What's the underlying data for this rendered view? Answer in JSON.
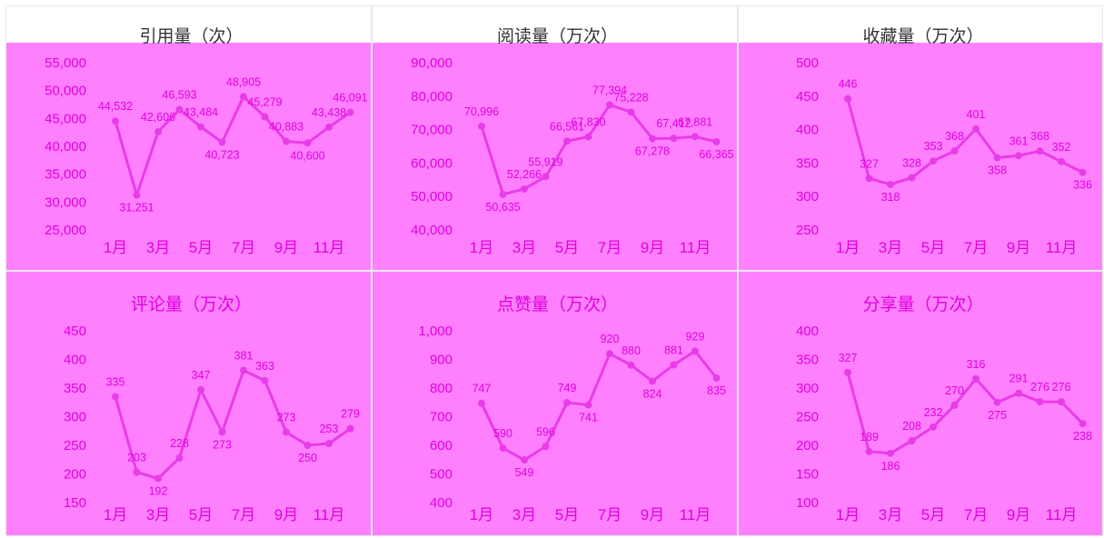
{
  "colors": {
    "background": "#ff80ff",
    "line": "#e83ce8",
    "text": "#e000e0",
    "title_top": "#333333",
    "title_bottom": "#e000e0"
  },
  "chart_data": [
    {
      "type": "line",
      "title": "引用量（次）",
      "categories": [
        "1月",
        "2月",
        "3月",
        "4月",
        "5月",
        "6月",
        "7月",
        "8月",
        "9月",
        "10月",
        "11月",
        "12月"
      ],
      "x_tick_labels": [
        "1月",
        "3月",
        "5月",
        "7月",
        "9月",
        "11月"
      ],
      "values": [
        44532,
        31251,
        42606,
        46593,
        43484,
        40723,
        48905,
        45279,
        40883,
        40600,
        43438,
        46091
      ],
      "data_labels": [
        "44,532",
        "31,251",
        "42,606",
        "46,593",
        "43,484",
        "40,723",
        "48,905",
        "45,279",
        "40,883",
        "40,600",
        "43,438",
        "46,091"
      ],
      "ylim": [
        25000,
        55000
      ],
      "y_ticks": [
        "25,000",
        "30,000",
        "35,000",
        "40,000",
        "45,000",
        "50,000",
        "55,000"
      ],
      "grid": false
    },
    {
      "type": "line",
      "title": "阅读量（万次）",
      "categories": [
        "1月",
        "2月",
        "3月",
        "4月",
        "5月",
        "6月",
        "7月",
        "8月",
        "9月",
        "10月",
        "11月",
        "12月"
      ],
      "x_tick_labels": [
        "1月",
        "3月",
        "5月",
        "7月",
        "9月",
        "11月"
      ],
      "values": [
        70996,
        50635,
        52266,
        55919,
        66561,
        67830,
        77394,
        75228,
        67278,
        67412,
        67881,
        66365
      ],
      "data_labels": [
        "70,996",
        "50,635",
        "52,266",
        "55,919",
        "66,561",
        "67,830",
        "77,394",
        "75,228",
        "67,278",
        "67,412",
        "67,881",
        "66,365"
      ],
      "ylim": [
        40000,
        90000
      ],
      "y_ticks": [
        "40,000",
        "50,000",
        "60,000",
        "70,000",
        "80,000",
        "90,000"
      ],
      "grid": false
    },
    {
      "type": "line",
      "title": "收藏量（万次）",
      "categories": [
        "1月",
        "2月",
        "3月",
        "4月",
        "5月",
        "6月",
        "7月",
        "8月",
        "9月",
        "10月",
        "11月",
        "12月"
      ],
      "x_tick_labels": [
        "1月",
        "3月",
        "5月",
        "7月",
        "9月",
        "11月"
      ],
      "values": [
        446,
        327,
        318,
        328,
        353,
        368,
        401,
        358,
        361,
        368,
        352,
        336
      ],
      "data_labels": [
        "446",
        "327",
        "318",
        "328",
        "353",
        "368",
        "401",
        "358",
        "361",
        "368",
        "352",
        "336"
      ],
      "ylim": [
        250,
        500
      ],
      "y_ticks": [
        "250",
        "300",
        "350",
        "400",
        "450",
        "500"
      ],
      "grid": false
    },
    {
      "type": "line",
      "title": "评论量（万次）",
      "categories": [
        "1月",
        "2月",
        "3月",
        "4月",
        "5月",
        "6月",
        "7月",
        "8月",
        "9月",
        "10月",
        "11月",
        "12月"
      ],
      "x_tick_labels": [
        "1月",
        "3月",
        "5月",
        "7月",
        "9月",
        "11月"
      ],
      "values": [
        335,
        203,
        192,
        228,
        347,
        273,
        381,
        363,
        273,
        250,
        253,
        279
      ],
      "data_labels": [
        "335",
        "203",
        "192",
        "228",
        "347",
        "273",
        "381",
        "363",
        "273",
        "250",
        "253",
        "279"
      ],
      "ylim": [
        150,
        450
      ],
      "y_ticks": [
        "150",
        "200",
        "250",
        "300",
        "350",
        "400",
        "450"
      ],
      "grid": false
    },
    {
      "type": "line",
      "title": "点赞量（万次）",
      "categories": [
        "1月",
        "2月",
        "3月",
        "4月",
        "5月",
        "6月",
        "7月",
        "8月",
        "9月",
        "10月",
        "11月",
        "12月"
      ],
      "x_tick_labels": [
        "1月",
        "3月",
        "5月",
        "7月",
        "9月",
        "11月"
      ],
      "values": [
        747,
        590,
        549,
        596,
        749,
        741,
        920,
        880,
        824,
        881,
        929,
        835
      ],
      "data_labels": [
        "747",
        "590",
        "549",
        "596",
        "749",
        "741",
        "920",
        "880",
        "824",
        "881",
        "929",
        "835"
      ],
      "ylim": [
        400,
        1000
      ],
      "y_ticks": [
        "400",
        "500",
        "600",
        "700",
        "800",
        "900",
        "1,000"
      ],
      "grid": false
    },
    {
      "type": "line",
      "title": "分享量（万次）",
      "categories": [
        "1月",
        "2月",
        "3月",
        "4月",
        "5月",
        "6月",
        "7月",
        "8月",
        "9月",
        "10月",
        "11月",
        "12月"
      ],
      "x_tick_labels": [
        "1月",
        "3月",
        "5月",
        "7月",
        "9月",
        "11月"
      ],
      "values": [
        327,
        189,
        186,
        208,
        232,
        270,
        316,
        275,
        291,
        276,
        276,
        238
      ],
      "data_labels": [
        "327",
        "189",
        "186",
        "208",
        "232",
        "270",
        "316",
        "275",
        "291",
        "276",
        "276",
        "238"
      ],
      "ylim": [
        100,
        400
      ],
      "y_ticks": [
        "100",
        "150",
        "200",
        "250",
        "300",
        "350",
        "400"
      ],
      "grid": false
    }
  ]
}
